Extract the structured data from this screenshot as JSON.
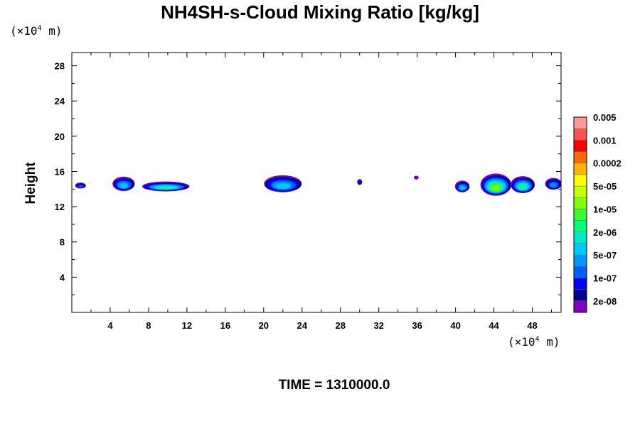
{
  "chart_data": {
    "type": "heatmap",
    "title": "NH4SH-s-Cloud Mixing Ratio [kg/kg]",
    "ylabel": "Height",
    "x_unit_prefix": "(×10",
    "x_unit_exp": "4",
    "x_unit_suffix": " m)",
    "y_unit_prefix": "(×10",
    "y_unit_exp": "4",
    "y_unit_suffix": " m)",
    "xlim": [
      0,
      51
    ],
    "ylim": [
      0,
      29.5
    ],
    "x_ticks": [
      4,
      8,
      12,
      16,
      20,
      24,
      28,
      32,
      36,
      40,
      44,
      48
    ],
    "y_ticks": [
      4,
      8,
      12,
      16,
      20,
      24,
      28
    ],
    "x_minor_step": 2,
    "y_minor_step": 2,
    "footer": "TIME = 1310000.0",
    "colorbar": {
      "colors": [
        "#7f00bf",
        "#00008f",
        "#0000ff",
        "#0060ff",
        "#0096ff",
        "#00c8ff",
        "#00e8c8",
        "#00ff80",
        "#34ff34",
        "#80ff00",
        "#c8ff00",
        "#ffff00",
        "#ffb400",
        "#ff6a00",
        "#ff0000",
        "#ff5050",
        "#ff9a9a"
      ],
      "labels": [
        "2e-08",
        "1e-07",
        "5e-07",
        "2e-06",
        "1e-05",
        "5e-05",
        "0.0002",
        "0.001",
        "0.005"
      ]
    },
    "cloud_cells": [
      {
        "x_center": 0.9,
        "y_center": 14.4,
        "width": 1.0,
        "height": 0.55,
        "peak_level": 3
      },
      {
        "x_center": 5.4,
        "y_center": 14.6,
        "width": 2.2,
        "height": 1.5,
        "peak_level": 5
      },
      {
        "x_center": 9.8,
        "y_center": 14.3,
        "width": 4.8,
        "height": 1.0,
        "peak_level": 7
      },
      {
        "x_center": 22.0,
        "y_center": 14.6,
        "width": 3.8,
        "height": 1.8,
        "peak_level": 5
      },
      {
        "x_center": 30.0,
        "y_center": 14.8,
        "width": 0.4,
        "height": 0.55,
        "peak_level": 2
      },
      {
        "x_center": 35.9,
        "y_center": 15.3,
        "width": 0.4,
        "height": 0.3,
        "peak_level": 0
      },
      {
        "x_center": 40.7,
        "y_center": 14.3,
        "width": 1.4,
        "height": 1.2,
        "peak_level": 5
      },
      {
        "x_center": 44.2,
        "y_center": 14.5,
        "width": 3.1,
        "height": 2.4,
        "peak_level": 9
      },
      {
        "x_center": 47.0,
        "y_center": 14.5,
        "width": 2.4,
        "height": 1.8,
        "peak_level": 7
      },
      {
        "x_center": 50.2,
        "y_center": 14.6,
        "width": 1.6,
        "height": 1.2,
        "peak_level": 4
      }
    ]
  }
}
